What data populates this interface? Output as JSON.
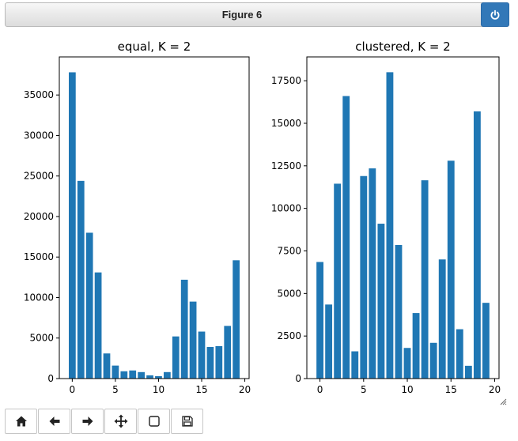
{
  "window": {
    "title": "Figure 6"
  },
  "colors": {
    "bar": "#1f77b4",
    "accent": "#3278b8"
  },
  "toolbar": {
    "buttons": [
      {
        "name": "home-button",
        "icon": "home-icon"
      },
      {
        "name": "back-button",
        "icon": "arrow-left-icon"
      },
      {
        "name": "forward-button",
        "icon": "arrow-right-icon"
      },
      {
        "name": "pan-button",
        "icon": "move-icon"
      },
      {
        "name": "zoom-button",
        "icon": "zoom-rect-icon"
      },
      {
        "name": "save-button",
        "icon": "save-icon"
      }
    ]
  },
  "chart_data": [
    {
      "type": "bar",
      "title": "equal, K = 2",
      "x": [
        0,
        1,
        2,
        3,
        4,
        5,
        6,
        7,
        8,
        9,
        10,
        11,
        12,
        13,
        14,
        15,
        16,
        17,
        18,
        19
      ],
      "values": [
        37800,
        24400,
        18000,
        13100,
        3100,
        1600,
        900,
        1000,
        800,
        400,
        300,
        800,
        5200,
        12200,
        9500,
        5800,
        3900,
        4000,
        6500,
        14600
      ],
      "xlim": [
        -1.5,
        20.5
      ],
      "ylim": [
        0,
        39700
      ],
      "xticks": [
        0,
        5,
        10,
        15,
        20
      ],
      "yticks": [
        0,
        5000,
        10000,
        15000,
        20000,
        25000,
        30000,
        35000
      ],
      "grid": false
    },
    {
      "type": "bar",
      "title": "clustered, K = 2",
      "x": [
        0,
        1,
        2,
        3,
        4,
        5,
        6,
        7,
        8,
        9,
        10,
        11,
        12,
        13,
        14,
        15,
        16,
        17,
        18,
        19
      ],
      "values": [
        6850,
        4350,
        11450,
        16600,
        1600,
        11900,
        12350,
        9100,
        18000,
        7850,
        1800,
        3850,
        11650,
        2100,
        7000,
        12800,
        2900,
        750,
        15700,
        4450
      ],
      "xlim": [
        -1.5,
        20.5
      ],
      "ylim": [
        0,
        18900
      ],
      "xticks": [
        0,
        5,
        10,
        15,
        20
      ],
      "yticks": [
        0,
        2500,
        5000,
        7500,
        10000,
        12500,
        15000,
        17500
      ],
      "grid": false
    }
  ]
}
